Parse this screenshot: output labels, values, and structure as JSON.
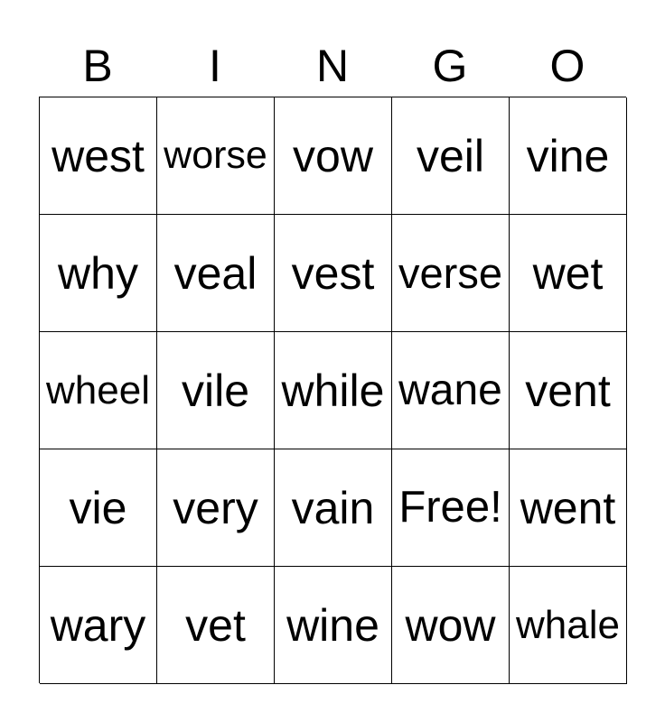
{
  "header": [
    "B",
    "I",
    "N",
    "G",
    "O"
  ],
  "cells": [
    [
      "west",
      "worse",
      "vow",
      "veil",
      "vine"
    ],
    [
      "why",
      "veal",
      "vest",
      "verse",
      "wet"
    ],
    [
      "wheel",
      "vile",
      "while",
      "wane",
      "vent"
    ],
    [
      "vie",
      "very",
      "vain",
      "Free!",
      "went"
    ],
    [
      "wary",
      "vet",
      "wine",
      "wow",
      "whale"
    ]
  ]
}
